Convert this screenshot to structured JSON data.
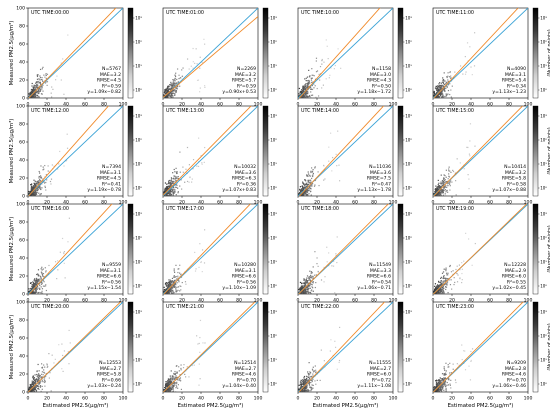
{
  "figure": {
    "ylabel": "Measured PM2.5(μg/m³)",
    "xlabel": "Estimated PM2.5(μg/m³)",
    "colorbar_label": "(Number of points)",
    "colorbar_ticks": [
      "10³",
      "10²",
      "10¹",
      "10⁰"
    ],
    "cmap": [
      "#ffffff",
      "#d0d0d0",
      "#888888",
      "#3a3a3a",
      "#000000"
    ],
    "onetoone_color": "#3ba3d6",
    "fit_color": "#f08a2a"
  },
  "chart_data": [
    {
      "type": "scatter",
      "title": "UTC TIME:00:00",
      "xlim": [
        0,
        100
      ],
      "ylim": [
        0,
        100
      ],
      "xticks": [
        0,
        20,
        40,
        60,
        80,
        100
      ],
      "yticks": [
        0,
        20,
        40,
        60,
        80,
        100
      ],
      "xlabel": "",
      "ylabel": "Measured PM2.5(μg/m³)",
      "stats": [
        "N=5767",
        "MAE=3.2",
        "RMSE=4.5",
        "R²=0.59",
        "y=1.09x−0.82"
      ],
      "fit": [
        1.09,
        -0.82
      ]
    },
    {
      "type": "scatter",
      "title": "UTC TIME:01:00",
      "xlim": [
        0,
        100
      ],
      "ylim": [
        0,
        100
      ],
      "xticks": [
        0,
        20,
        40,
        60,
        80,
        100
      ],
      "yticks": [],
      "xlabel": "",
      "ylabel": "",
      "stats": [
        "N=2269",
        "MAE=3.2",
        "RMSE=5.7",
        "R²=0.59",
        "y=0.90x+0.53"
      ],
      "fit": [
        0.9,
        0.53
      ]
    },
    {
      "type": "scatter",
      "title": "UTC TIME:10:00",
      "xlim": [
        0,
        100
      ],
      "ylim": [
        0,
        100
      ],
      "xticks": [
        0,
        20,
        40,
        60,
        80,
        100
      ],
      "yticks": [],
      "xlabel": "",
      "ylabel": "",
      "stats": [
        "N=1158",
        "MAE=3.0",
        "RMSE=4.3",
        "R²=0.50",
        "y=1.18x−1.72"
      ],
      "fit": [
        1.18,
        -1.72
      ]
    },
    {
      "type": "scatter",
      "title": "UTC TIME:11:00",
      "xlim": [
        0,
        100
      ],
      "ylim": [
        0,
        100
      ],
      "xticks": [
        0,
        20,
        40,
        60,
        80,
        100
      ],
      "yticks": [],
      "xlabel": "",
      "ylabel": "",
      "stats": [
        "N=4090",
        "MAE=3.1",
        "RMSE=5.4",
        "R²=0.34",
        "y=1.13x−1.23"
      ],
      "fit": [
        1.13,
        -1.23
      ]
    },
    {
      "type": "scatter",
      "title": "UTC TIME:12:00",
      "xlim": [
        0,
        100
      ],
      "ylim": [
        0,
        100
      ],
      "xticks": [
        0,
        20,
        40,
        60,
        80,
        100
      ],
      "yticks": [
        0,
        20,
        40,
        60,
        80,
        100
      ],
      "xlabel": "",
      "ylabel": "Measured PM2.5(μg/m³)",
      "stats": [
        "N=7394",
        "MAE=3.1",
        "RMSE=4.5",
        "R²=0.41",
        "y=1.19x−0.78"
      ],
      "fit": [
        1.19,
        -0.78
      ]
    },
    {
      "type": "scatter",
      "title": "UTC TIME:13:00",
      "xlim": [
        0,
        100
      ],
      "ylim": [
        0,
        100
      ],
      "xticks": [
        0,
        20,
        40,
        60,
        80,
        100
      ],
      "yticks": [],
      "xlabel": "",
      "ylabel": "",
      "stats": [
        "N=10032",
        "MAE=3.6",
        "RMSE=6.3",
        "R²=0.36",
        "y=1.07x+0.83"
      ],
      "fit": [
        1.07,
        0.83
      ]
    },
    {
      "type": "scatter",
      "title": "UTC TIME:14:00",
      "xlim": [
        0,
        100
      ],
      "ylim": [
        0,
        100
      ],
      "xticks": [
        0,
        20,
        40,
        60,
        80,
        100
      ],
      "yticks": [],
      "xlabel": "",
      "ylabel": "",
      "stats": [
        "N=11036",
        "MAE=3.6",
        "RMSE=7.5",
        "R²=0.47",
        "y=1.13x−1.78"
      ],
      "fit": [
        1.13,
        -1.78
      ]
    },
    {
      "type": "scatter",
      "title": "UTC TIME:15:00",
      "xlim": [
        0,
        100
      ],
      "ylim": [
        0,
        100
      ],
      "xticks": [
        0,
        20,
        40,
        60,
        80,
        100
      ],
      "yticks": [],
      "xlabel": "",
      "ylabel": "",
      "stats": [
        "N=10414",
        "MAE=3.2",
        "RMSE=5.8",
        "R²=0.58",
        "y=1.07x−0.88"
      ],
      "fit": [
        1.07,
        -0.88
      ]
    },
    {
      "type": "scatter",
      "title": "UTC TIME:16:00",
      "xlim": [
        0,
        100
      ],
      "ylim": [
        0,
        100
      ],
      "xticks": [
        0,
        20,
        40,
        60,
        80,
        100
      ],
      "yticks": [
        0,
        20,
        40,
        60,
        80,
        100
      ],
      "xlabel": "",
      "ylabel": "Measured PM2.5(μg/m³)",
      "stats": [
        "N=9559",
        "MAE=3.1",
        "RMSE=6.6",
        "R²=0.56",
        "y=1.15x−1.54"
      ],
      "fit": [
        1.15,
        -1.54
      ]
    },
    {
      "type": "scatter",
      "title": "UTC TIME:17:00",
      "xlim": [
        0,
        100
      ],
      "ylim": [
        0,
        100
      ],
      "xticks": [
        0,
        20,
        40,
        60,
        80,
        100
      ],
      "yticks": [],
      "xlabel": "",
      "ylabel": "",
      "stats": [
        "N=10280",
        "MAE=3.1",
        "RMSE=6.6",
        "R²=0.56",
        "y=1.10x−1.09"
      ],
      "fit": [
        1.1,
        -1.09
      ]
    },
    {
      "type": "scatter",
      "title": "UTC TIME:18:00",
      "xlim": [
        0,
        100
      ],
      "ylim": [
        0,
        100
      ],
      "xticks": [
        0,
        20,
        40,
        60,
        80,
        100
      ],
      "yticks": [],
      "xlabel": "",
      "ylabel": "",
      "stats": [
        "N=11549",
        "MAE=3.3",
        "RMSE=6.6",
        "R²=0.54",
        "y=1.06x−0.71"
      ],
      "fit": [
        1.06,
        -0.71
      ]
    },
    {
      "type": "scatter",
      "title": "UTC TIME:19:00",
      "xlim": [
        0,
        100
      ],
      "ylim": [
        0,
        100
      ],
      "xticks": [
        0,
        20,
        40,
        60,
        80,
        100
      ],
      "yticks": [],
      "xlabel": "",
      "ylabel": "",
      "stats": [
        "N=12228",
        "MAE=2.9",
        "RMSE=6.0",
        "R²=0.55",
        "y=1.02x−0.45"
      ],
      "fit": [
        1.02,
        -0.45
      ]
    },
    {
      "type": "scatter",
      "title": "UTC TIME:20:00",
      "xlim": [
        0,
        100
      ],
      "ylim": [
        0,
        100
      ],
      "xticks": [
        0,
        20,
        40,
        60,
        80,
        100
      ],
      "yticks": [
        0,
        20,
        40,
        60,
        80,
        100
      ],
      "xlabel": "Estimated PM2.5(μg/m³)",
      "ylabel": "Measured PM2.5(μg/m³)",
      "stats": [
        "N=12553",
        "MAE=2.7",
        "RMSE=5.8",
        "R²=0.66",
        "y=1.03x−0.24"
      ],
      "fit": [
        1.03,
        -0.24
      ]
    },
    {
      "type": "scatter",
      "title": "UTC TIME:21:00",
      "xlim": [
        0,
        100
      ],
      "ylim": [
        0,
        100
      ],
      "xticks": [
        0,
        20,
        40,
        60,
        80,
        100
      ],
      "yticks": [],
      "xlabel": "Estimated PM2.5(μg/m³)",
      "ylabel": "",
      "stats": [
        "N=12514",
        "MAE=2.7",
        "RMSE=4.6",
        "R²=0.70",
        "y=1.04x−0.40"
      ],
      "fit": [
        1.04,
        -0.4
      ]
    },
    {
      "type": "scatter",
      "title": "UTC TIME:22:00",
      "xlim": [
        0,
        100
      ],
      "ylim": [
        0,
        100
      ],
      "xticks": [
        0,
        20,
        40,
        60,
        80,
        100
      ],
      "yticks": [],
      "xlabel": "Estimated PM2.5(μg/m³)",
      "ylabel": "",
      "stats": [
        "N=11555",
        "MAE=2.7",
        "RMSE=6.0",
        "R²=0.72",
        "y=1.11x−1.08"
      ],
      "fit": [
        1.11,
        -1.08
      ]
    },
    {
      "type": "scatter",
      "title": "UTC TIME:23:00",
      "xlim": [
        0,
        100
      ],
      "ylim": [
        0,
        100
      ],
      "xticks": [
        0,
        20,
        40,
        60,
        80,
        100
      ],
      "yticks": [],
      "xlabel": "Estimated PM2.5(μg/m³)",
      "ylabel": "",
      "stats": [
        "N=9209",
        "MAE=2.8",
        "RMSE=4.6",
        "R²=0.70",
        "y=1.06x−0.46"
      ],
      "fit": [
        1.06,
        -0.46
      ]
    }
  ]
}
